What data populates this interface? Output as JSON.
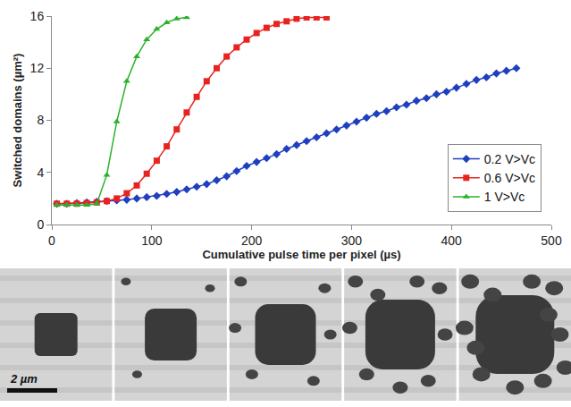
{
  "chart_data": {
    "type": "line",
    "x_label": "Cumulative pulse time per pixel (µs)",
    "y_label": "Switched domains (µm²)",
    "xlim": [
      0,
      500
    ],
    "xticks": [
      0,
      100,
      200,
      300,
      400,
      500
    ],
    "ylim": [
      0,
      16
    ],
    "yticks": [
      0,
      4,
      8,
      12,
      16
    ],
    "grid": false,
    "legend": "lower right",
    "series": [
      {
        "name": "0.2 V>Vc",
        "color": "#1f3fbf",
        "marker": "diamond",
        "line_style": "solid",
        "x": [
          5,
          15,
          25,
          35,
          45,
          55,
          65,
          75,
          85,
          95,
          105,
          115,
          125,
          135,
          145,
          155,
          165,
          175,
          185,
          195,
          205,
          215,
          225,
          235,
          245,
          255,
          265,
          275,
          285,
          295,
          305,
          315,
          325,
          335,
          345,
          355,
          365,
          375,
          385,
          395,
          405,
          415,
          425,
          435,
          445,
          455,
          465
        ],
        "values": [
          1.6,
          1.6,
          1.65,
          1.7,
          1.75,
          1.8,
          1.85,
          1.9,
          2.0,
          2.1,
          2.2,
          2.35,
          2.5,
          2.7,
          2.9,
          3.1,
          3.4,
          3.7,
          4.1,
          4.5,
          4.8,
          5.1,
          5.4,
          5.8,
          6.1,
          6.4,
          6.7,
          7.0,
          7.3,
          7.6,
          7.9,
          8.2,
          8.5,
          8.7,
          9.0,
          9.2,
          9.5,
          9.7,
          10.0,
          10.2,
          10.5,
          10.8,
          11.1,
          11.3,
          11.6,
          11.8,
          12.0
        ]
      },
      {
        "name": "0.6 V>Vc",
        "color": "#e8231f",
        "marker": "square",
        "line_style": "solid",
        "x": [
          5,
          15,
          25,
          35,
          45,
          55,
          65,
          75,
          85,
          95,
          105,
          115,
          125,
          135,
          145,
          155,
          165,
          175,
          185,
          195,
          205,
          215,
          225,
          235,
          245,
          255,
          265,
          275
        ],
        "values": [
          1.6,
          1.6,
          1.6,
          1.65,
          1.7,
          1.8,
          2.0,
          2.4,
          3.0,
          3.9,
          4.9,
          6.0,
          7.3,
          8.6,
          9.8,
          11.0,
          12.0,
          12.9,
          13.6,
          14.2,
          14.7,
          15.1,
          15.4,
          15.6,
          15.8,
          15.9,
          15.9,
          15.9
        ]
      },
      {
        "name": "1 V>Vc",
        "color": "#2bb22b",
        "marker": "triangle-up",
        "line_style": "solid",
        "x": [
          5,
          15,
          25,
          35,
          45,
          55,
          65,
          75,
          85,
          95,
          105,
          115,
          125,
          135
        ],
        "values": [
          1.5,
          1.5,
          1.5,
          1.5,
          1.6,
          3.8,
          7.9,
          11.0,
          12.9,
          14.2,
          15.0,
          15.5,
          15.8,
          15.9
        ]
      }
    ]
  },
  "image_strip": {
    "panels": 5,
    "scale_bar_label": "2 µm"
  }
}
